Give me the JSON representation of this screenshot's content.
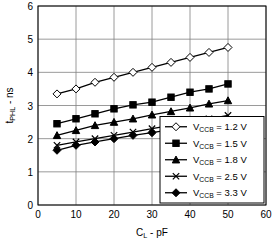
{
  "chart_data": {
    "type": "line",
    "x_label": "CL - pF",
    "y_label": "tPHL - ns",
    "x": [
      5,
      10,
      15,
      20,
      25,
      30,
      35,
      40,
      45,
      50
    ],
    "series": [
      {
        "name": "VCCB = 1.2 V",
        "color": "#000000",
        "marker": "diamond-open",
        "values": [
          3.35,
          3.5,
          3.7,
          3.85,
          4.0,
          4.15,
          4.3,
          4.45,
          4.6,
          4.75
        ]
      },
      {
        "name": "VCCB = 1.5 V",
        "color": "#000000",
        "marker": "square",
        "values": [
          2.45,
          2.6,
          2.75,
          2.9,
          3.02,
          3.1,
          3.25,
          3.4,
          3.5,
          3.65
        ]
      },
      {
        "name": "VCCB = 1.8 V",
        "color": "#000000",
        "marker": "triangle",
        "values": [
          2.1,
          2.25,
          2.4,
          2.5,
          2.6,
          2.72,
          2.82,
          2.93,
          3.05,
          3.15
        ]
      },
      {
        "name": "VCCB = 2.5 V",
        "color": "#000000",
        "marker": "x",
        "values": [
          1.8,
          1.9,
          2.0,
          2.1,
          2.2,
          2.3,
          2.4,
          2.5,
          2.6,
          2.7
        ]
      },
      {
        "name": "VCCB = 3.3 V",
        "color": "#000000",
        "marker": "diamond",
        "values": [
          1.65,
          1.8,
          1.9,
          2.0,
          2.1,
          2.18,
          2.27,
          2.35,
          2.45,
          2.55
        ]
      }
    ],
    "xlim": [
      0,
      60
    ],
    "xticks": [
      0,
      10,
      20,
      30,
      40,
      50,
      60
    ],
    "ylim": [
      0,
      6
    ],
    "yticks": [
      0,
      1,
      2,
      3,
      4,
      5,
      6
    ],
    "grid": true,
    "legend": "lower right"
  }
}
